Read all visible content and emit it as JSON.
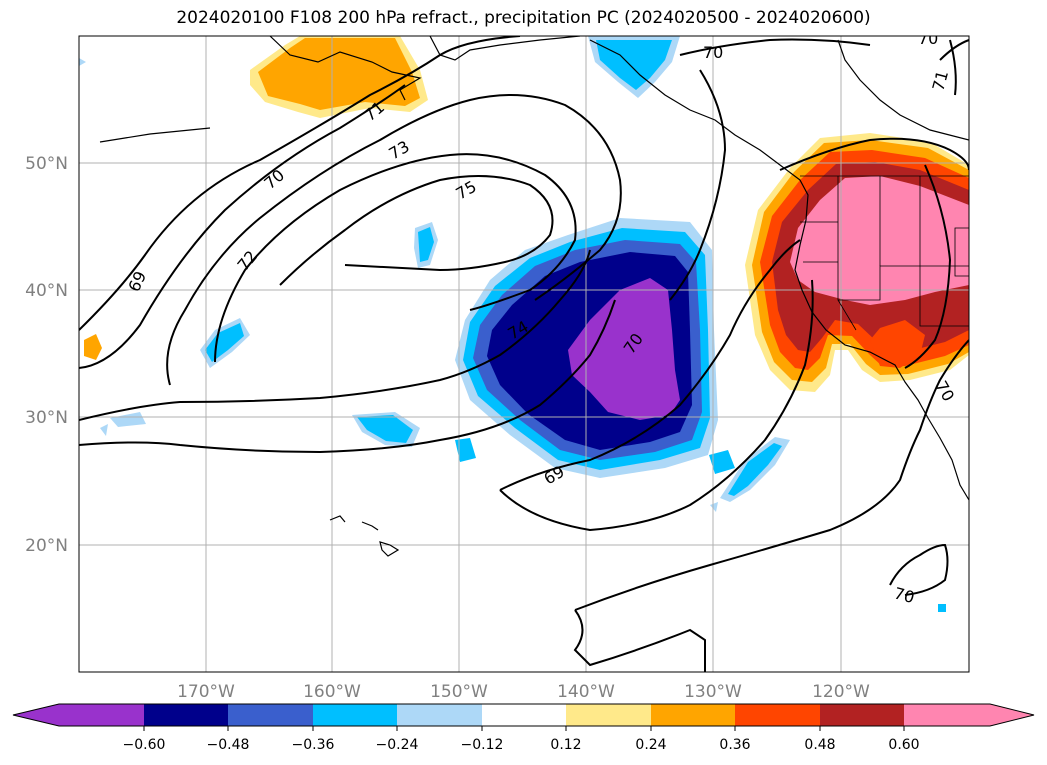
{
  "title": "2024020100 F108 200 hPa refract., precipitation PC (2024020500 - 2024020600)",
  "map": {
    "lon_ticks": [
      "170°W",
      "160°W",
      "150°W",
      "140°W",
      "130°W",
      "120°W"
    ],
    "lat_ticks": [
      "50°N",
      "40°N",
      "30°N",
      "20°N"
    ],
    "contour_labels": [
      "70",
      "70",
      "71",
      "71",
      "73",
      "70",
      "75",
      "72",
      "69",
      "74",
      "70",
      "69",
      "70",
      "70"
    ]
  },
  "colorbar": {
    "ticks": [
      "−0.60",
      "−0.48",
      "−0.36",
      "−0.24",
      "−0.12",
      "0.12",
      "0.24",
      "0.36",
      "0.48",
      "0.60"
    ],
    "colors": [
      "#9932cc",
      "#00008b",
      "#3a5fcd",
      "#00bfff",
      "#add8f7",
      "#ffffff",
      "#ffe98a",
      "#ffa500",
      "#ff4500",
      "#b22222",
      "#ff85b0"
    ]
  }
}
